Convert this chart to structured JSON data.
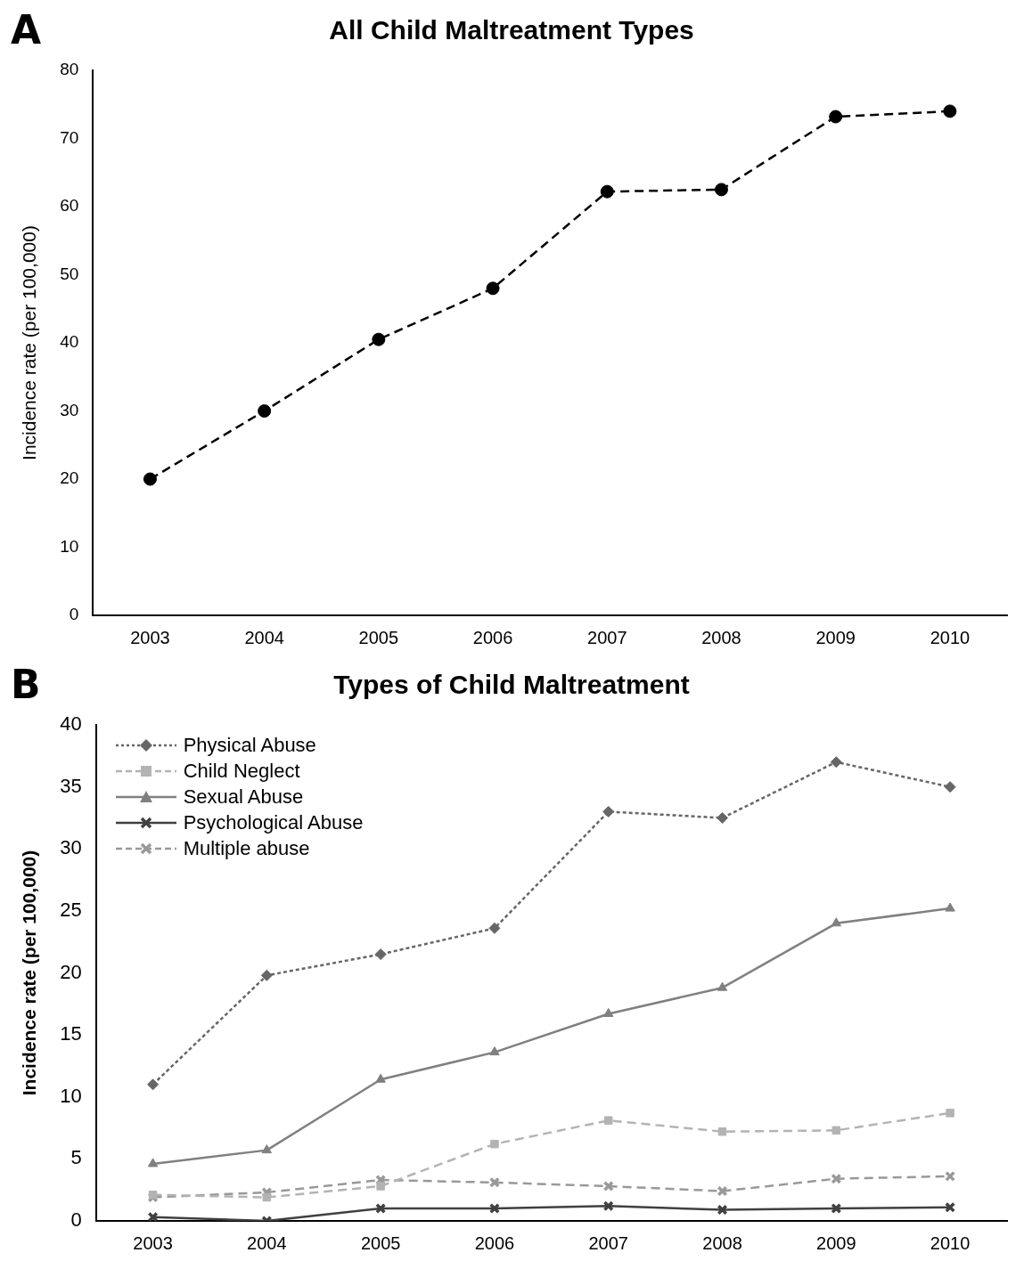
{
  "chart_data": [
    {
      "type": "line",
      "title": "All Child Maltreatment Types",
      "ylabel": "Incidence rate (per 100,000)",
      "annotations": [
        "A"
      ],
      "categories": [
        "2003",
        "2004",
        "2005",
        "2006",
        "2007",
        "2008",
        "2009",
        "2010"
      ],
      "series": [
        {
          "color": "#000000",
          "values": [
            20,
            30,
            40.5,
            48,
            62.2,
            62.5,
            73.2,
            74
          ]
        }
      ],
      "ylim": [
        0,
        80
      ],
      "yticks": [
        0,
        10,
        20,
        30,
        40,
        50,
        60,
        70,
        80
      ],
      "grid": false,
      "legend": false,
      "marker": "circle",
      "line_style": "dashed"
    },
    {
      "type": "line",
      "title": "Types of Child Maltreatment",
      "ylabel": "Incidence rate (per 100,000)",
      "annotations": [
        "B"
      ],
      "categories": [
        "2003",
        "2004",
        "2005",
        "2006",
        "2007",
        "2008",
        "2009",
        "2010"
      ],
      "series": [
        {
          "name": "Physical Abuse",
          "color": "#666666",
          "marker": "diamond",
          "line_style": "dotted",
          "values": [
            11,
            19.8,
            21.5,
            23.6,
            33,
            32.5,
            37,
            35
          ]
        },
        {
          "name": "Child Neglect",
          "color": "#b3b3b3",
          "marker": "square",
          "line_style": "dashed",
          "values": [
            2.1,
            1.9,
            2.8,
            6.2,
            8.1,
            7.2,
            7.3,
            8.7
          ]
        },
        {
          "name": "Sexual Abuse",
          "color": "#808080",
          "marker": "triangle",
          "line_style": "solid",
          "values": [
            4.6,
            5.7,
            11.4,
            13.6,
            16.7,
            18.8,
            24,
            25.2
          ]
        },
        {
          "name": "Psychological Abuse",
          "color": "#404040",
          "marker": "cross",
          "line_style": "solid",
          "values": [
            0.3,
            0,
            1,
            1,
            1.2,
            0.9,
            1,
            1.1
          ]
        },
        {
          "name": "Multiple abuse",
          "color": "#999999",
          "marker": "cross",
          "line_style": "dashed",
          "values": [
            1.9,
            2.3,
            3.3,
            3.1,
            2.8,
            2.4,
            3.4,
            3.6
          ]
        }
      ],
      "ylim": [
        0,
        40
      ],
      "yticks": [
        0,
        5,
        10,
        15,
        20,
        25,
        30,
        35,
        40
      ],
      "grid": false,
      "legend": "top left"
    }
  ]
}
